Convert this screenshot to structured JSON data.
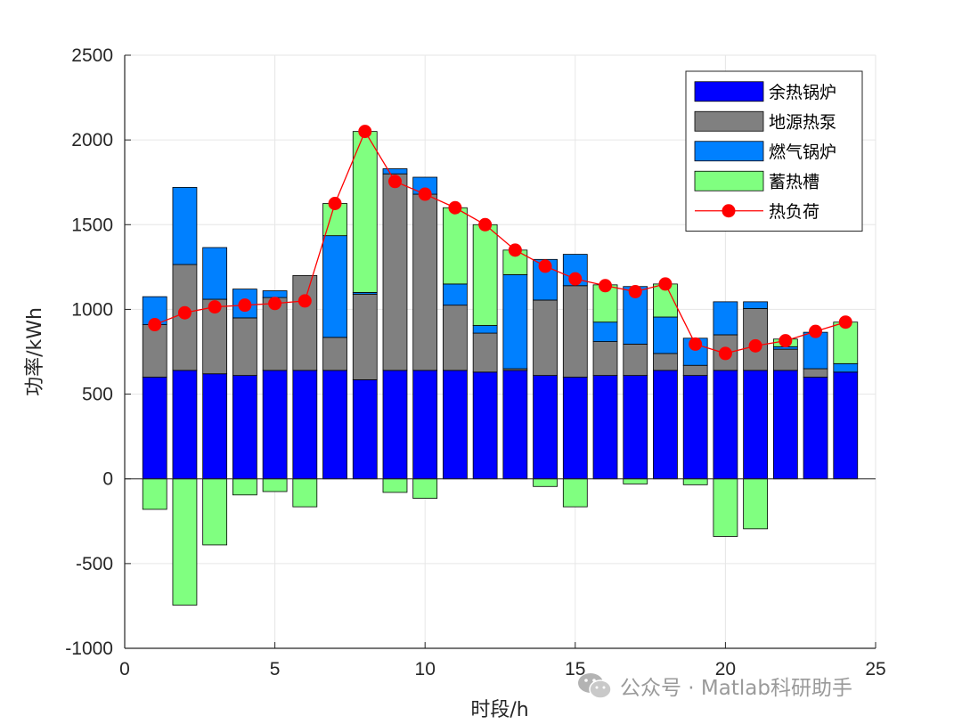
{
  "chart_data": {
    "type": "bar",
    "subtype": "stacked-bar-with-line",
    "title": "",
    "xlabel": "时段/h",
    "ylabel": "功率/kWh",
    "xlim": [
      0,
      25
    ],
    "ylim": [
      -1000,
      2500
    ],
    "xticks": [
      0,
      5,
      10,
      15,
      20,
      25
    ],
    "yticks": [
      -1000,
      -500,
      0,
      500,
      1000,
      1500,
      2000,
      2500
    ],
    "grid": true,
    "legend_position": "top-right",
    "x": [
      1,
      2,
      3,
      4,
      5,
      6,
      7,
      8,
      9,
      10,
      11,
      12,
      13,
      14,
      15,
      16,
      17,
      18,
      19,
      20,
      21,
      22,
      23,
      24
    ],
    "series": [
      {
        "name": "余热锅炉",
        "color": "#0000ff",
        "kind": "bar",
        "values": [
          600,
          640,
          620,
          610,
          640,
          640,
          640,
          585,
          640,
          640,
          640,
          630,
          640,
          610,
          600,
          610,
          610,
          640,
          610,
          640,
          640,
          640,
          600,
          630
        ]
      },
      {
        "name": "地源热泵",
        "color": "#808080",
        "kind": "bar",
        "values": [
          310,
          625,
          440,
          340,
          430,
          560,
          195,
          505,
          1160,
          1040,
          385,
          230,
          10,
          445,
          540,
          200,
          185,
          100,
          60,
          210,
          365,
          125,
          50,
          0
        ]
      },
      {
        "name": "燃气锅炉",
        "color": "#0080ff",
        "kind": "bar",
        "values": [
          165,
          455,
          305,
          170,
          40,
          0,
          600,
          10,
          30,
          100,
          125,
          45,
          555,
          240,
          185,
          115,
          340,
          215,
          160,
          195,
          40,
          15,
          215,
          50
        ]
      },
      {
        "name": "蓄热槽",
        "color": "#80ff80",
        "kind": "bar",
        "values": [
          -180,
          -745,
          -390,
          -95,
          -75,
          -165,
          190,
          950,
          -80,
          -115,
          450,
          595,
          145,
          -45,
          -165,
          220,
          -30,
          195,
          -35,
          -340,
          -295,
          45,
          0,
          245
        ]
      },
      {
        "name": "热负荷",
        "color": "#ff0000",
        "kind": "line",
        "values": [
          910,
          980,
          1015,
          1025,
          1035,
          1050,
          1625,
          2050,
          1755,
          1680,
          1600,
          1500,
          1350,
          1255,
          1180,
          1140,
          1105,
          1150,
          795,
          740,
          785,
          815,
          870,
          925
        ]
      }
    ]
  },
  "watermark": {
    "icon": "wechat-icon",
    "text": "公众号 · Matlab科研助手"
  }
}
